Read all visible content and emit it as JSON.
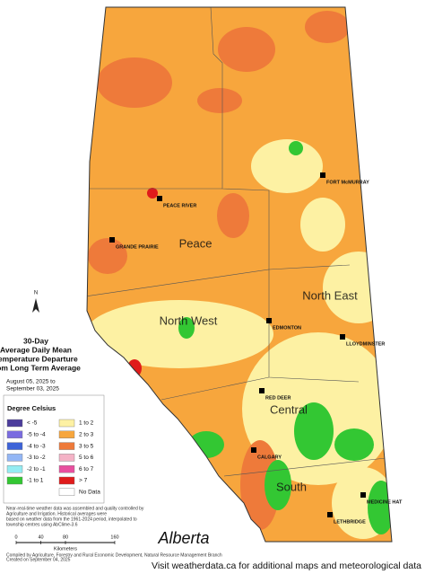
{
  "title_lines": [
    "30-Day",
    "Average Daily Mean",
    "Temperature Departure",
    "from Long Term Average"
  ],
  "date_lines": [
    "August 05, 2025 to",
    "September 03, 2025"
  ],
  "legend": {
    "title": "Degree Celsius",
    "items": [
      {
        "label": "< -5",
        "color": "#4b3c9c"
      },
      {
        "label": "-5 to -4",
        "color": "#7a6ce0"
      },
      {
        "label": "-4 to -3",
        "color": "#3d63d8"
      },
      {
        "label": "-3 to -2",
        "color": "#93b6f5"
      },
      {
        "label": "-2 to -1",
        "color": "#94ecf2"
      },
      {
        "label": "-1 to 1",
        "color": "#33c733"
      },
      {
        "label": "1 to 2",
        "color": "#fdf1a3"
      },
      {
        "label": "2 to 3",
        "color": "#f7a63d"
      },
      {
        "label": "3 to 5",
        "color": "#ee7a3a"
      },
      {
        "label": "5 to 6",
        "color": "#f4b2c6"
      },
      {
        "label": "6 to 7",
        "color": "#e84f9f"
      },
      {
        "label": "> 7",
        "color": "#e01b1b"
      },
      {
        "label": "No Data",
        "color": "#ffffff"
      }
    ]
  },
  "regions": [
    "Peace",
    "North East",
    "North West",
    "Central",
    "South"
  ],
  "cities": [
    "FORT McMURRAY",
    "PEACE RIVER",
    "GRANDE PRAIRIE",
    "EDMONTON",
    "LLOYDMINSTER",
    "RED DEER",
    "CALGARY",
    "MEDICINE HAT",
    "LETHBRIDGE"
  ],
  "north_arrow": "N",
  "notes": [
    "Near-real-time weather data was assembled and quality controlled by",
    "Agriculture and Irrigation. Historical averages were",
    "based on weather data from the 1961-2024 period, interpolated to",
    "township centres using AbClime-3.6"
  ],
  "credits": [
    "Compiled by Agriculture, Forestry and Rural Economic Development, Natural Resource Management Branch",
    "Created on September 04, 2025"
  ],
  "scale_bar": {
    "ticks": [
      0,
      40,
      80,
      160
    ],
    "unit": "Kilometers"
  },
  "logo": "Alberta",
  "footer": "Visit weatherdata.ca for additional maps and meteorological data"
}
